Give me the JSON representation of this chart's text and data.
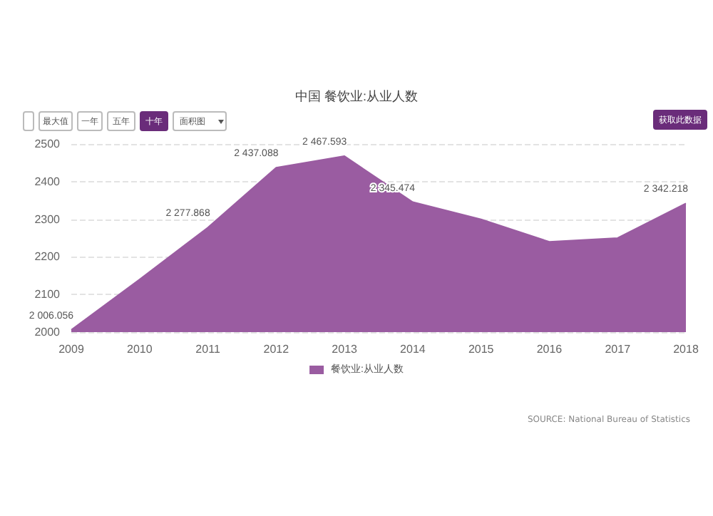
{
  "chart_data": {
    "type": "area",
    "title": "中国 餐饮业:从业人数",
    "categories": [
      "2009",
      "2010",
      "2011",
      "2012",
      "2013",
      "2014",
      "2015",
      "2016",
      "2017",
      "2018"
    ],
    "series": [
      {
        "name": "餐饮业:从业人数",
        "color": "#9a5ca1",
        "values": [
          2006.056,
          2140,
          2277.868,
          2437.088,
          2467.593,
          2345.474,
          2300,
          2240,
          2250,
          2342.218
        ],
        "value_labels": [
          "2 006.056",
          null,
          "2 277.868",
          "2 437.088",
          "2 467.593",
          "2 345.474",
          null,
          null,
          null,
          "2 342.218"
        ]
      }
    ],
    "ylim": [
      2000,
      2500
    ],
    "yticks": [
      2000,
      2100,
      2200,
      2300,
      2400,
      2500
    ],
    "grid": "y",
    "legend": "bottom",
    "marker": "none",
    "annotations": [
      "最大值",
      "一年",
      "五年",
      "十年",
      "面积图",
      "获取此数据",
      "SOURCE: National Bureau of Statistics"
    ]
  }
}
